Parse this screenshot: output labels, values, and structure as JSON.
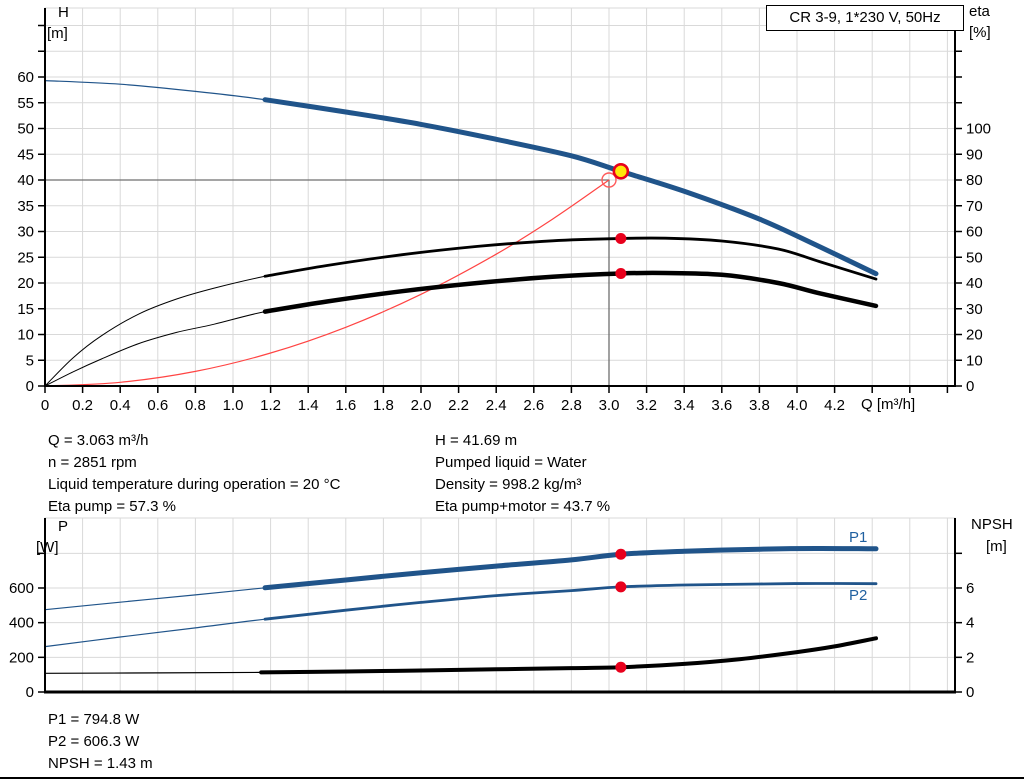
{
  "colors": {
    "blue": "#20548A",
    "black": "#000000",
    "red": "#FF4443",
    "grid": "#D9D9D9",
    "crosshair": "#6F6F6F",
    "marker_red": "#E8001C",
    "open_red": "#FF5A5A",
    "duty_yellow": "#FFE60A",
    "label_blue": "#2060A0"
  },
  "labels": {
    "top_left_unit_1": "H",
    "top_left_unit_2": "[m]",
    "top_right_unit_1": "eta",
    "top_right_unit_2": "[%]",
    "x_axis": "Q [m³/h]",
    "bottom_left_unit_1": "P",
    "bottom_left_unit_2": "[W]",
    "bottom_right_unit_1": "NPSH",
    "bottom_right_unit_2": "[m]",
    "p1_curve": "P1",
    "p2_curve": "P2"
  },
  "info": {
    "top_left": [
      "Q = 3.063 m³/h",
      "n = 2851 rpm",
      "Liquid temperature during operation = 20 °C",
      "Eta pump = 57.3 %"
    ],
    "top_right": [
      "H = 41.69 m",
      "Pumped liquid = Water",
      "Density = 998.2 kg/m³",
      "Eta pump+motor = 43.7 %"
    ],
    "bottom": [
      "P1 = 794.8 W",
      "P2 = 606.3 W",
      "NPSH = 1.43 m"
    ]
  },
  "chart_data": [
    {
      "id": "top",
      "type": "line",
      "title": "CR 3-9, 1*230 V, 50Hz",
      "xlabel": "Q [m³/h]",
      "ylabel_left": "H [m]",
      "ylabel_right": "eta [%]",
      "xlim": [
        0,
        4.84
      ],
      "ylim_left": [
        0,
        73.4
      ],
      "ylim_right": [
        0,
        146.8
      ],
      "grid": true,
      "axes": {
        "x": {
          "tick_step": 0.2,
          "tick_max": 4.8,
          "show_ticks": true,
          "labeled": [
            0,
            0.2,
            0.4,
            0.6,
            0.8,
            1.0,
            1.2,
            1.4,
            1.6,
            1.8,
            2.0,
            2.2,
            2.4,
            2.6,
            2.8,
            3.0,
            3.2,
            3.4,
            3.6,
            3.8,
            4.0,
            4.2
          ]
        },
        "left": {
          "title": "H [m]",
          "labeled": [
            0,
            5,
            10,
            15,
            20,
            25,
            30,
            35,
            40,
            45,
            50,
            55,
            60
          ],
          "unlabeled": [
            65,
            70
          ]
        },
        "right": {
          "title": "eta [%]",
          "labeled": [
            0,
            10,
            20,
            30,
            40,
            50,
            60,
            70,
            80,
            90,
            100
          ],
          "unlabeled": [
            110,
            120,
            130,
            140
          ]
        }
      },
      "crosshair": {
        "q": 3.0,
        "v": 40
      },
      "series": [
        {
          "name": "system curve",
          "axis": "left",
          "color": "red",
          "width_thin": 1.2,
          "points": [
            [
              0,
              0
            ],
            [
              0.4,
              0.71
            ],
            [
              0.8,
              2.84
            ],
            [
              1.2,
              6.4
            ],
            [
              1.6,
              11.4
            ],
            [
              2.0,
              17.8
            ],
            [
              2.4,
              25.6
            ],
            [
              2.7,
              32.4
            ],
            [
              3.0,
              40
            ]
          ]
        },
        {
          "name": "eta pump",
          "axis": "right",
          "color": "black",
          "width_thin": 1,
          "width_thick": 2.8,
          "bold_from": 1.17,
          "points": [
            [
              0,
              0
            ],
            [
              0.15,
              11
            ],
            [
              0.3,
              19.5
            ],
            [
              0.5,
              28
            ],
            [
              0.7,
              33.8
            ],
            [
              0.9,
              38
            ],
            [
              1.17,
              42.6
            ],
            [
              1.5,
              46.8
            ],
            [
              1.9,
              51
            ],
            [
              2.3,
              54.2
            ],
            [
              2.7,
              56.4
            ],
            [
              3.063,
              57.3
            ],
            [
              3.3,
              57.4
            ],
            [
              3.6,
              56.3
            ],
            [
              3.9,
              53.2
            ],
            [
              4.12,
              48.3
            ],
            [
              4.42,
              41.5
            ]
          ]
        },
        {
          "name": "eta pump plus motor",
          "axis": "right",
          "color": "black",
          "width_thin": 1,
          "width_thick": 4.5,
          "bold_from": 1.17,
          "points": [
            [
              0,
              0
            ],
            [
              0.15,
              5.5
            ],
            [
              0.3,
              10.5
            ],
            [
              0.5,
              16.5
            ],
            [
              0.7,
              20.8
            ],
            [
              0.9,
              24
            ],
            [
              1.17,
              28.9
            ],
            [
              1.5,
              32.8
            ],
            [
              1.9,
              36.8
            ],
            [
              2.3,
              40
            ],
            [
              2.7,
              42.4
            ],
            [
              3.063,
              43.7
            ],
            [
              3.3,
              43.9
            ],
            [
              3.6,
              43.2
            ],
            [
              3.9,
              40
            ],
            [
              4.12,
              36
            ],
            [
              4.42,
              31.1
            ]
          ]
        },
        {
          "name": "QH pump curve",
          "axis": "left",
          "color": "blue",
          "width_thin": 1.2,
          "width_thick": 5,
          "bold_from": 1.17,
          "points": [
            [
              0,
              59.3
            ],
            [
              0.4,
              58.6
            ],
            [
              0.8,
              57.2
            ],
            [
              1.17,
              55.6
            ],
            [
              1.6,
              53.2
            ],
            [
              2.0,
              50.8
            ],
            [
              2.4,
              47.9
            ],
            [
              2.8,
              44.7
            ],
            [
              3.063,
              41.69
            ],
            [
              3.4,
              37.8
            ],
            [
              3.8,
              32.4
            ],
            [
              4.1,
              27.4
            ],
            [
              4.42,
              21.8
            ]
          ]
        }
      ],
      "markers": [
        {
          "type": "open",
          "q": 3.0,
          "v": 40,
          "axis": "left"
        },
        {
          "type": "dot",
          "q": 3.063,
          "v": 57.3,
          "axis": "right"
        },
        {
          "type": "dot",
          "q": 3.063,
          "v": 43.7,
          "axis": "right"
        },
        {
          "type": "duty",
          "q": 3.063,
          "v": 41.69,
          "axis": "left"
        }
      ]
    },
    {
      "id": "bottom",
      "type": "line",
      "xlabel": "Q [m³/h]",
      "ylabel_left": "P [W]",
      "ylabel_right": "NPSH [m]",
      "xlim": [
        0,
        4.84
      ],
      "ylim_left": [
        0,
        1003
      ],
      "ylim_right": [
        0,
        10.03
      ],
      "grid": true,
      "axes": {
        "x": {
          "tick_step": 0.2,
          "tick_max": 4.8,
          "show_ticks": false,
          "labeled": []
        },
        "left": {
          "title": "P [W]",
          "labeled": [
            0,
            200,
            400,
            600
          ],
          "unlabeled": [
            800
          ]
        },
        "right": {
          "title": "NPSH [m]",
          "labeled": [
            0,
            2,
            4,
            6
          ],
          "unlabeled": [
            8
          ]
        }
      },
      "series": [
        {
          "name": "P1 power input",
          "axis": "left",
          "color": "blue",
          "width_thin": 1.2,
          "width_thick": 5,
          "bold_from": 1.17,
          "points": [
            [
              0,
              475
            ],
            [
              0.4,
              518
            ],
            [
              0.8,
              560
            ],
            [
              1.17,
              601
            ],
            [
              1.6,
              646
            ],
            [
              2.0,
              688
            ],
            [
              2.4,
              726
            ],
            [
              2.8,
              762
            ],
            [
              3.063,
              794.8
            ],
            [
              3.4,
              812
            ],
            [
              3.8,
              824
            ],
            [
              4.1,
              828
            ],
            [
              4.42,
              826
            ]
          ]
        },
        {
          "name": "P2 shaft power",
          "axis": "left",
          "color": "blue",
          "width_thin": 1.2,
          "width_thick": 2.8,
          "bold_from": 1.17,
          "points": [
            [
              0,
              262
            ],
            [
              0.4,
              317
            ],
            [
              0.8,
              370
            ],
            [
              1.17,
              420
            ],
            [
              1.6,
              472
            ],
            [
              2.0,
              517
            ],
            [
              2.4,
              556
            ],
            [
              2.8,
              585
            ],
            [
              3.063,
              606.3
            ],
            [
              3.4,
              617
            ],
            [
              3.8,
              623
            ],
            [
              4.1,
              626
            ],
            [
              4.42,
              625
            ]
          ]
        },
        {
          "name": "NPSH curve",
          "axis": "right",
          "color": "black",
          "width_thin": 1.2,
          "width_thick": 4,
          "bold_from": 1.15,
          "points": [
            [
              0,
              1.08
            ],
            [
              0.6,
              1.1
            ],
            [
              1.15,
              1.13
            ],
            [
              1.6,
              1.18
            ],
            [
              2.0,
              1.24
            ],
            [
              2.4,
              1.31
            ],
            [
              2.8,
              1.38
            ],
            [
              3.063,
              1.43
            ],
            [
              3.4,
              1.62
            ],
            [
              3.7,
              1.9
            ],
            [
              4.0,
              2.3
            ],
            [
              4.2,
              2.63
            ],
            [
              4.42,
              3.1
            ]
          ]
        }
      ],
      "markers": [
        {
          "type": "dot",
          "q": 3.063,
          "v": 794.8,
          "axis": "left"
        },
        {
          "type": "dot",
          "q": 3.063,
          "v": 606.3,
          "axis": "left"
        },
        {
          "type": "dot",
          "q": 3.063,
          "v": 1.43,
          "axis": "right"
        }
      ]
    }
  ]
}
